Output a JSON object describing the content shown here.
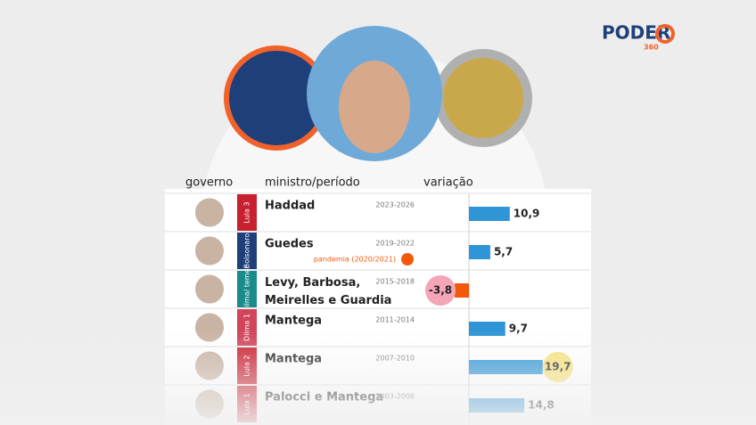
{
  "chart_data": {
    "type": "bar",
    "logo": "PODER",
    "logo_sub": "360",
    "headers": [
      "governo",
      "ministro/período",
      "variação"
    ],
    "governments": [
      "Lula 3",
      "Bolsonaro",
      "Dilma/ temer",
      "Dilma 1",
      "Lula 2",
      "Lula 1"
    ],
    "government_colors": [
      "#c8202f",
      "#1f3f7a",
      "#1a8a8a",
      "#d0455a",
      "#c8202f",
      "#c8202f"
    ],
    "categories": [
      "Haddad",
      "Guedes",
      "Levy, Barbosa, Meirelles e Guardia",
      "Mantega",
      "Mantega",
      "Palocci e Mantega"
    ],
    "periods": [
      "2023-2026",
      "2019-2022",
      "2015-2018",
      "2011-2014",
      "2007-2010",
      "2003-2006"
    ],
    "note": "pandemia (2020/2021)",
    "values": [
      10.9,
      5.7,
      -3.8,
      9.7,
      19.7,
      14.8
    ],
    "value_labels": [
      "10,9",
      "5,7",
      "-3,8",
      "9,7",
      "19,7",
      "14,8"
    ],
    "color": "#2f95d6",
    "negative_color": "#f25a0a"
  }
}
